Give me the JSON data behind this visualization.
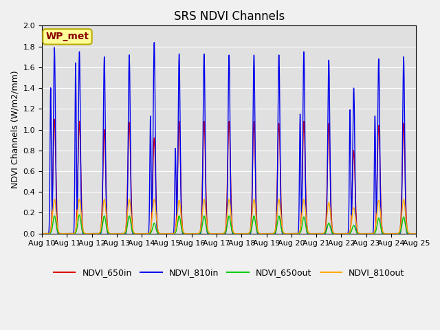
{
  "title": "SRS NDVI Channels",
  "ylabel": "NDVI Channels (W/m2/mm)",
  "ylim": [
    0.0,
    2.0
  ],
  "yticks": [
    0.0,
    0.2,
    0.4,
    0.6,
    0.8,
    1.0,
    1.2,
    1.4,
    1.6,
    1.8,
    2.0
  ],
  "colors": {
    "NDVI_650in": "#dd0000",
    "NDVI_810in": "#0000ee",
    "NDVI_650out": "#00cc00",
    "NDVI_810out": "#ffaa00"
  },
  "bg_color": "#e0e0e0",
  "annotation_text": "WP_met",
  "annotation_facecolor": "#ffff99",
  "annotation_edgecolor": "#bbaa00",
  "annotation_textcolor": "#880000",
  "title_fontsize": 12,
  "label_fontsize": 9,
  "tick_fontsize": 8,
  "legend_fontsize": 9,
  "linewidth": 1.0,
  "n_days": 15,
  "day_start": 10,
  "peaks_650in": [
    1.1,
    1.08,
    1.0,
    1.07,
    0.92,
    1.08,
    1.08,
    1.08,
    1.08,
    1.06,
    1.08,
    1.06,
    0.8,
    1.04,
    1.06
  ],
  "peaks_810in": [
    1.79,
    1.75,
    1.7,
    1.72,
    1.84,
    1.73,
    1.73,
    1.72,
    1.72,
    1.72,
    1.75,
    1.67,
    1.4,
    1.68,
    1.7
  ],
  "peaks_650out": [
    0.17,
    0.18,
    0.17,
    0.17,
    0.1,
    0.17,
    0.17,
    0.17,
    0.17,
    0.17,
    0.16,
    0.1,
    0.08,
    0.15,
    0.16
  ],
  "peaks_810out": [
    0.33,
    0.33,
    0.33,
    0.33,
    0.33,
    0.32,
    0.33,
    0.33,
    0.33,
    0.33,
    0.33,
    0.3,
    0.25,
    0.32,
    0.33
  ],
  "peak2_650in": [
    null,
    null,
    null,
    null,
    null,
    null,
    null,
    null,
    null,
    null,
    null,
    null,
    null,
    null,
    null
  ],
  "peak2_810in": [
    1.4,
    1.64,
    null,
    null,
    1.13,
    0.82,
    null,
    null,
    null,
    null,
    1.15,
    null,
    1.19,
    1.13,
    null
  ],
  "peak2_650out": [
    null,
    null,
    null,
    null,
    null,
    null,
    null,
    null,
    null,
    null,
    null,
    null,
    null,
    null,
    null
  ],
  "peak2_810out": [
    null,
    null,
    null,
    null,
    null,
    null,
    null,
    null,
    null,
    null,
    null,
    null,
    null,
    null,
    null
  ],
  "grid_color": "#ffffff",
  "grid_linewidth": 0.8
}
